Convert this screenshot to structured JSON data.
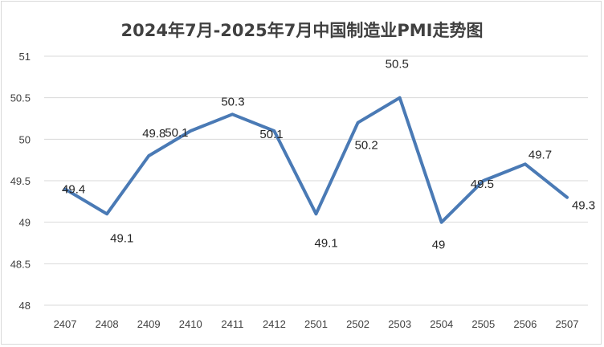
{
  "chart_data": {
    "type": "line",
    "title": "2024年7月-2025年7月中国制造业PMI走势图",
    "categories": [
      "2407",
      "2408",
      "2409",
      "2410",
      "2411",
      "2412",
      "2501",
      "2502",
      "2503",
      "2504",
      "2505",
      "2506",
      "2507"
    ],
    "series": [
      {
        "values": [
          49.4,
          49.1,
          49.8,
          50.1,
          50.3,
          50.1,
          49.1,
          50.2,
          50.5,
          49,
          49.5,
          49.7,
          49.3
        ]
      }
    ],
    "data_labels": [
      "49.4",
      "49.1",
      "49.8",
      "50.1",
      "50.3",
      "50.1",
      "49.1",
      "50.2",
      "50.5",
      "49",
      "49.5",
      "49.7",
      "49.3"
    ],
    "xlabel": "",
    "ylabel": "",
    "ylim": [
      48,
      51
    ],
    "yticks": [
      "48",
      "48.5",
      "49",
      "49.5",
      "50",
      "50.5",
      "51"
    ],
    "grid": true,
    "legend": "none",
    "colors": {
      "line": "#4a7ab5",
      "grid": "#d9d9d9",
      "axis_text": "#404040"
    }
  }
}
